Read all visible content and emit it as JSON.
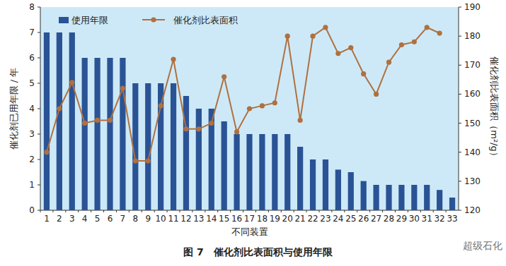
{
  "chart_data": {
    "type": "bar",
    "title": "图 7　催化剂比表面积与使用年限",
    "x_label": "不同装置",
    "y_label": "催化剂已用年限 / 年",
    "y2_label": "催化剂比表面积（m²/g）",
    "annotations": [
      "超级石化"
    ],
    "categories": [
      "1",
      "2",
      "3",
      "4",
      "5",
      "6",
      "7",
      "8",
      "9",
      "10",
      "11",
      "12",
      "13",
      "14",
      "15",
      "16",
      "17",
      "18",
      "19",
      "20",
      "21",
      "22",
      "23",
      "24",
      "25",
      "26",
      "27",
      "28",
      "29",
      "30",
      "31",
      "32",
      "33"
    ],
    "series": [
      {
        "name": "使用年限",
        "type": "bar",
        "color": "#2a5396",
        "values": [
          7,
          7,
          7,
          6,
          6,
          6,
          6,
          5,
          5,
          5,
          5,
          4.5,
          4,
          4,
          3.5,
          3,
          3,
          3,
          3,
          3,
          2.5,
          2,
          2,
          1.6,
          1.5,
          1.15,
          1,
          1,
          1,
          1,
          1,
          0.8,
          0.5
        ]
      },
      {
        "name": "催化剂比表面积",
        "type": "line",
        "axis": "y2",
        "color": "#b0703f",
        "marker": "circle",
        "line_style": "solid",
        "values": [
          140,
          155,
          164,
          150,
          151,
          151,
          162,
          137,
          137,
          156,
          172,
          148,
          148,
          150,
          166,
          147,
          155,
          156,
          157,
          180,
          151,
          180,
          183,
          174,
          176,
          167,
          160,
          171,
          177,
          178,
          183,
          181,
          null
        ]
      }
    ],
    "ylim": [
      0,
      8
    ],
    "yticks": [
      0,
      1,
      2,
      3,
      4,
      5,
      6,
      7,
      8
    ],
    "y2lim": [
      120,
      190
    ],
    "y2ticks": [
      120,
      130,
      140,
      150,
      160,
      170,
      180,
      190
    ],
    "grid": false,
    "legend": "top-left"
  }
}
